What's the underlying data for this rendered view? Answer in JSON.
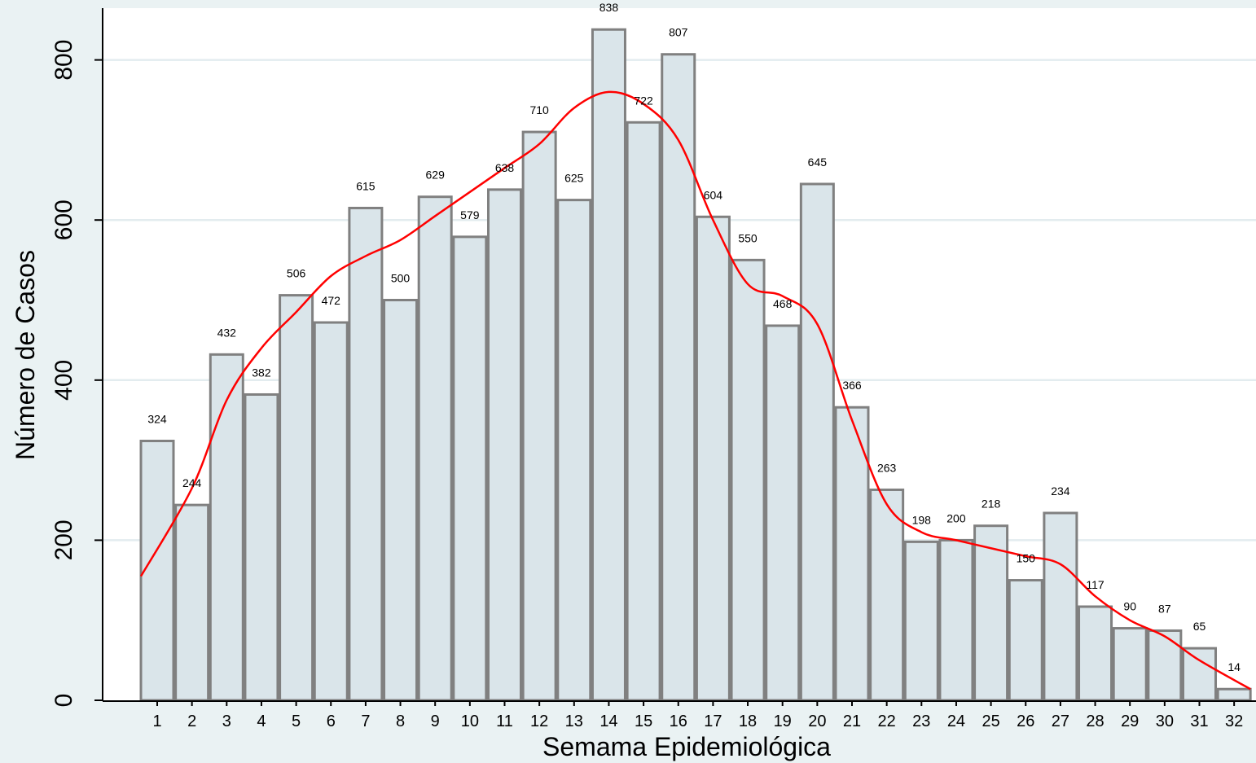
{
  "chart_data": {
    "type": "bar",
    "title": "",
    "xlabel": "Semama Epidemiológica",
    "ylabel": "Número de Casos",
    "categories": [
      "1",
      "2",
      "3",
      "4",
      "5",
      "6",
      "7",
      "8",
      "9",
      "10",
      "11",
      "12",
      "13",
      "14",
      "15",
      "16",
      "17",
      "18",
      "19",
      "20",
      "21",
      "22",
      "23",
      "24",
      "25",
      "26",
      "27",
      "28",
      "29",
      "30",
      "31",
      "32"
    ],
    "values": [
      324,
      244,
      432,
      382,
      506,
      472,
      615,
      500,
      629,
      579,
      638,
      710,
      625,
      838,
      722,
      807,
      604,
      550,
      468,
      645,
      366,
      263,
      198,
      200,
      218,
      150,
      234,
      117,
      90,
      87,
      65,
      14
    ],
    "yticks": [
      0,
      200,
      400,
      600,
      800
    ],
    "ylim": [
      0,
      860
    ],
    "grid": true,
    "smoothed_line": {
      "color": "#ff0000",
      "values": [
        155,
        265,
        375,
        440,
        485,
        530,
        555,
        575,
        605,
        635,
        665,
        695,
        740,
        760,
        745,
        700,
        600,
        520,
        505,
        470,
        350,
        245,
        210,
        200,
        190,
        180,
        170,
        130,
        100,
        80,
        50,
        14
      ]
    },
    "colors": {
      "bar_fill": "#dae5ea",
      "bar_stroke": "#808080",
      "background": "#eaf2f3",
      "plot_background": "#ffffff",
      "line": "#ff0000"
    }
  }
}
